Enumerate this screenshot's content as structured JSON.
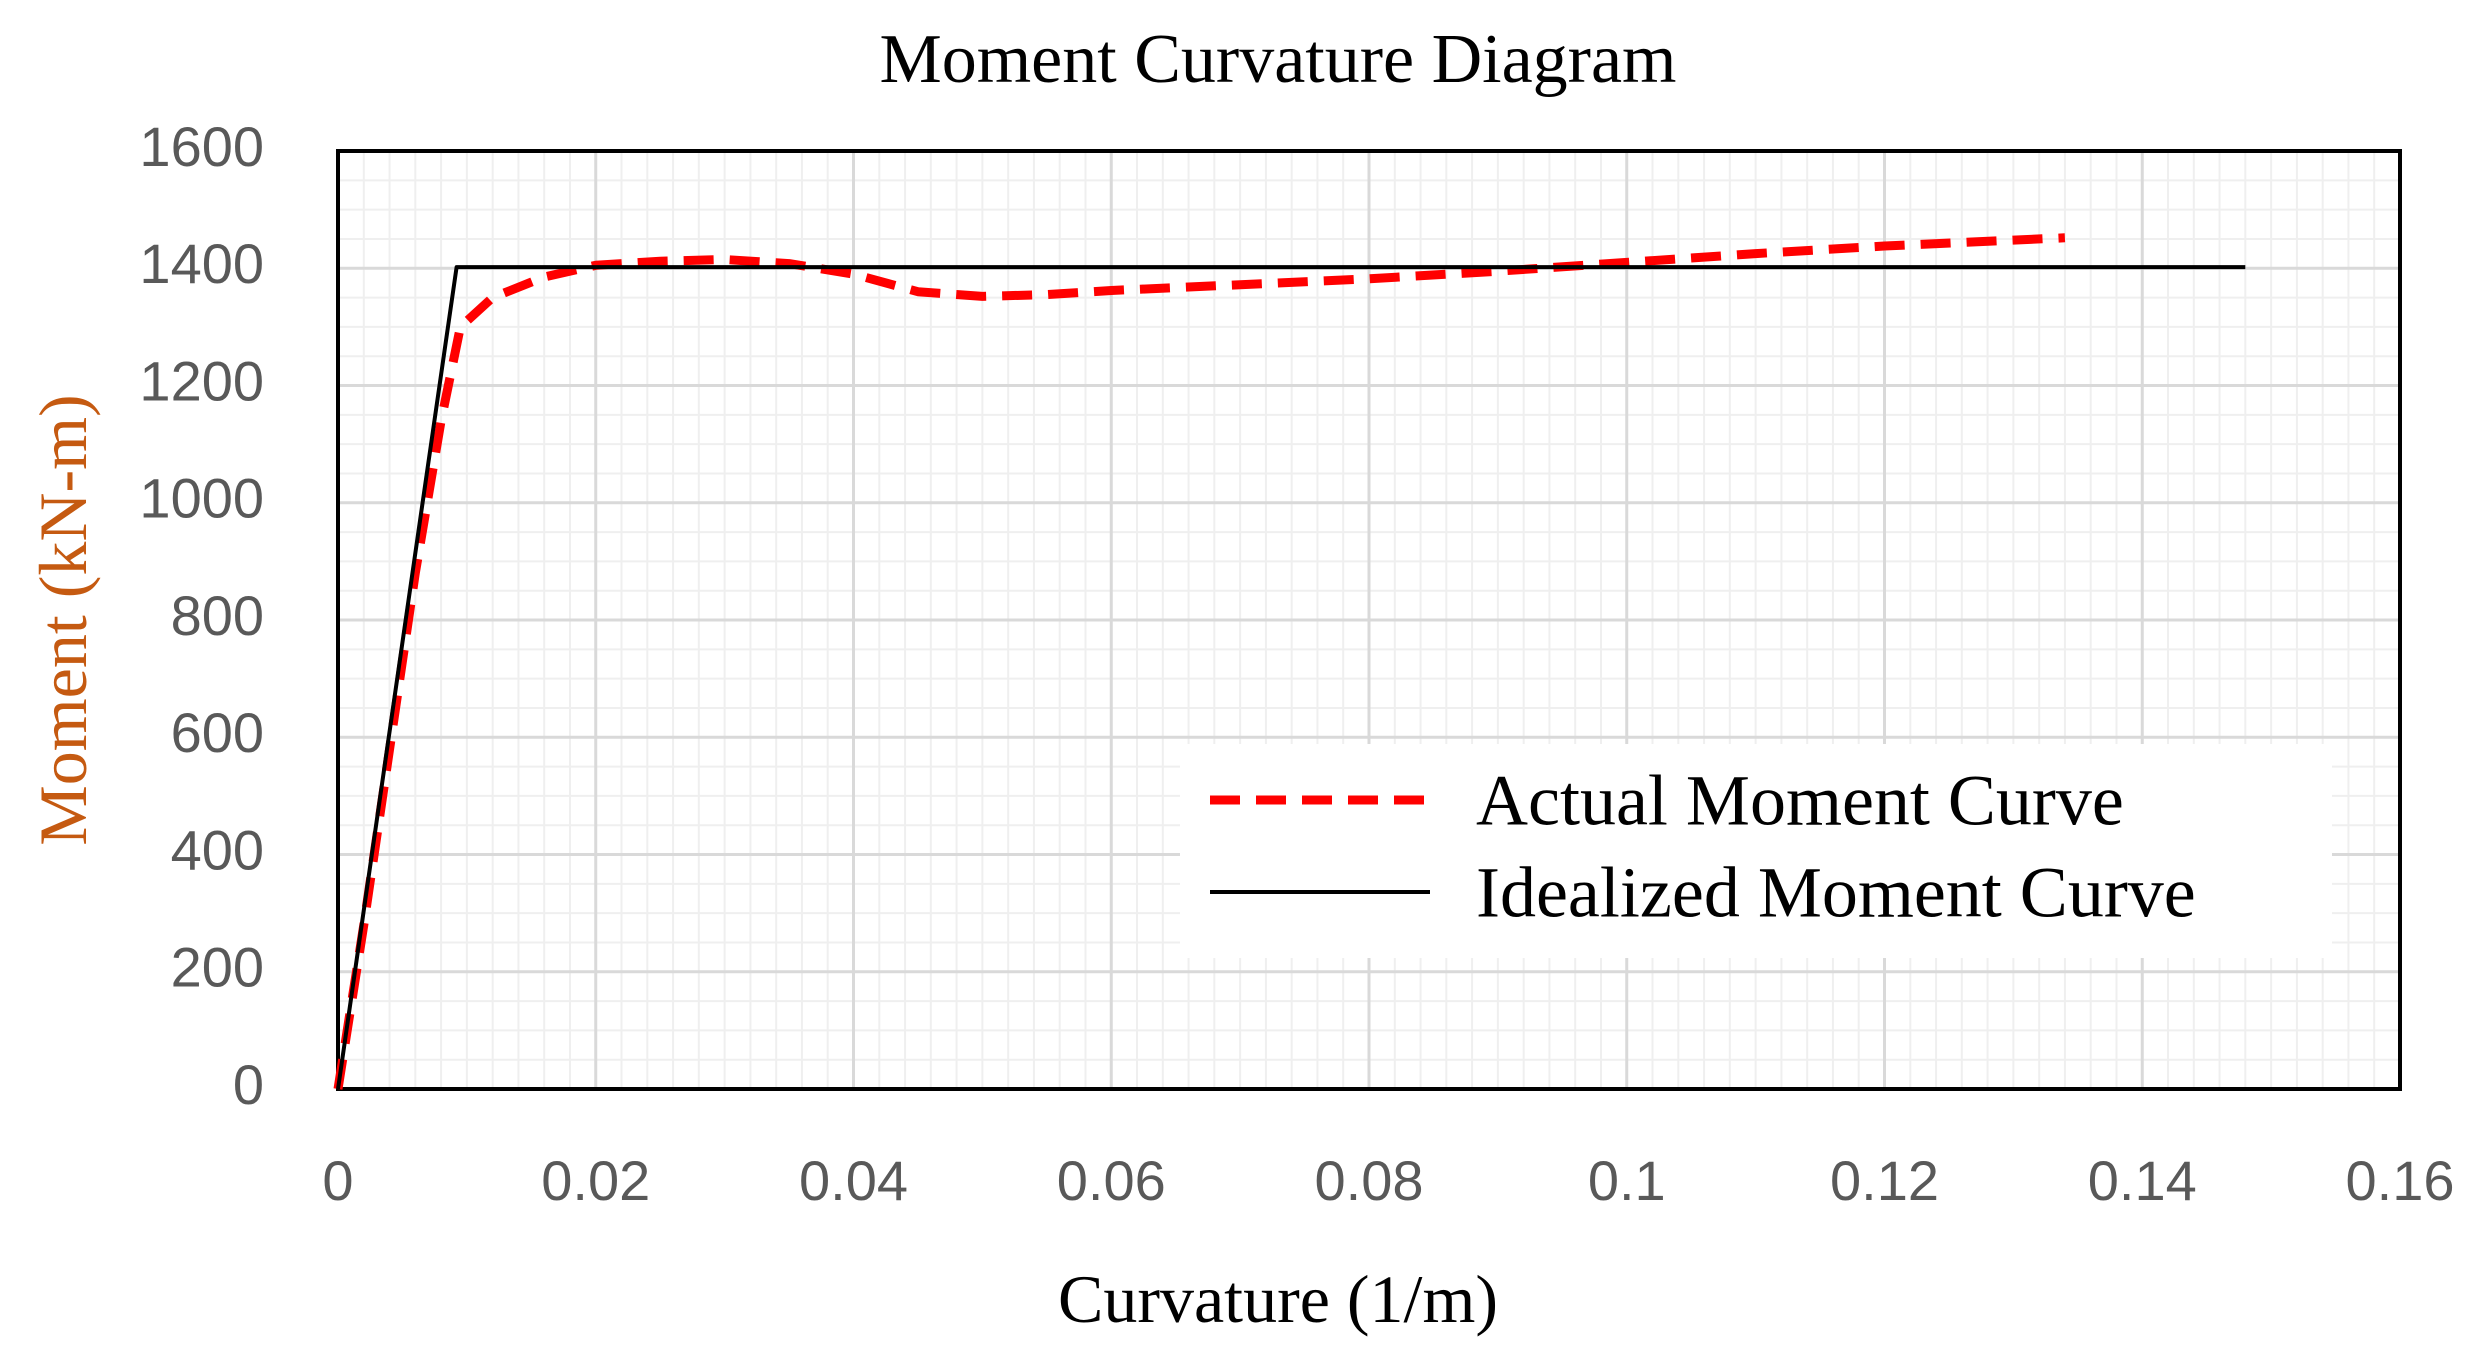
{
  "chart_data": {
    "type": "line",
    "title": "Moment Curvature Diagram",
    "xlabel": "Curvature (1/m)",
    "ylabel": "Moment (kN-m)",
    "xlim": [
      0,
      0.16
    ],
    "ylim": [
      0,
      1600
    ],
    "x_ticks": [
      "0",
      "0.02",
      "0.04",
      "0.06",
      "0.08",
      "0.1",
      "0.12",
      "0.14",
      "0.16"
    ],
    "y_ticks": [
      "0",
      "200",
      "400",
      "600",
      "800",
      "1000",
      "1200",
      "1400",
      "1600"
    ],
    "x_tick_values": [
      0,
      0.02,
      0.04,
      0.06,
      0.08,
      0.1,
      0.12,
      0.14,
      0.16
    ],
    "y_tick_values": [
      0,
      200,
      400,
      600,
      800,
      1000,
      1200,
      1400,
      1600
    ],
    "grid": true,
    "legend_position": "lower-right",
    "series": [
      {
        "name": "Actual Moment Curve",
        "color": "#ff0000",
        "line_style": "dashed",
        "x": [
          0,
          0.002,
          0.004,
          0.006,
          0.008,
          0.0095,
          0.012,
          0.016,
          0.02,
          0.025,
          0.03,
          0.035,
          0.04,
          0.045,
          0.05,
          0.055,
          0.06,
          0.07,
          0.08,
          0.09,
          0.1,
          0.11,
          0.12,
          0.13,
          0.134
        ],
        "y": [
          0,
          280,
          580,
          880,
          1140,
          1300,
          1350,
          1385,
          1405,
          1412,
          1415,
          1408,
          1390,
          1360,
          1352,
          1355,
          1362,
          1372,
          1382,
          1395,
          1410,
          1425,
          1438,
          1448,
          1452
        ]
      },
      {
        "name": "Idealized Moment Curve",
        "color": "#000000",
        "line_style": "solid",
        "x": [
          0,
          0.0092,
          0.148
        ],
        "y": [
          0,
          1402,
          1402
        ]
      }
    ]
  },
  "colors": {
    "background": "#ffffff",
    "plot_border": "#000000",
    "major_grid": "#d9d9d9",
    "minor_grid": "#efefef",
    "tick_text": "#595959",
    "ylabel_color": "#c55a11"
  }
}
